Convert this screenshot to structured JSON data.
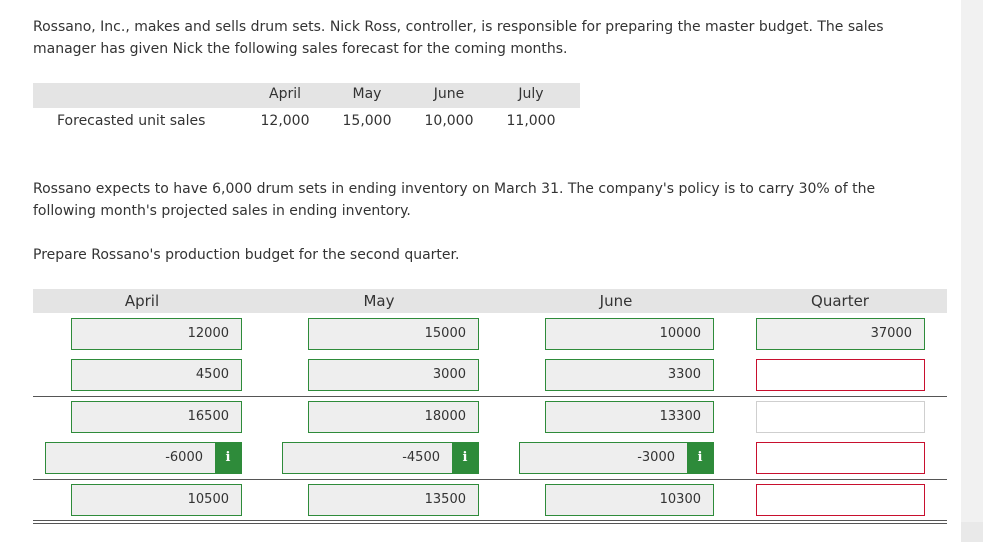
{
  "intro": "Rossano, Inc., makes and sells drum sets. Nick Ross, controller, is responsible for preparing the master budget. The sales manager has given Nick the following sales forecast for the coming months.",
  "forecast": {
    "row_label": "Forecasted unit sales",
    "months": [
      "April",
      "May",
      "June",
      "July"
    ],
    "values": [
      "12,000",
      "15,000",
      "10,000",
      "11,000"
    ]
  },
  "policy_text": "Rossano expects to have 6,000 drum sets in ending inventory on March 31. The company's policy is to carry 30% of the following month's projected sales in ending inventory.",
  "instruction": "Prepare Rossano's production budget for the second quarter.",
  "budget": {
    "headers": [
      "April",
      "May",
      "June",
      "Quarter"
    ],
    "april": [
      "12000",
      "4500",
      "16500",
      "-6000",
      "10500"
    ],
    "may": [
      "15000",
      "3000",
      "18000",
      "-4500",
      "13500"
    ],
    "june": [
      "10000",
      "3300",
      "13300",
      "-3000",
      "10300"
    ],
    "quarter": [
      "37000",
      "",
      "",
      "",
      ""
    ],
    "info_label": "i"
  }
}
